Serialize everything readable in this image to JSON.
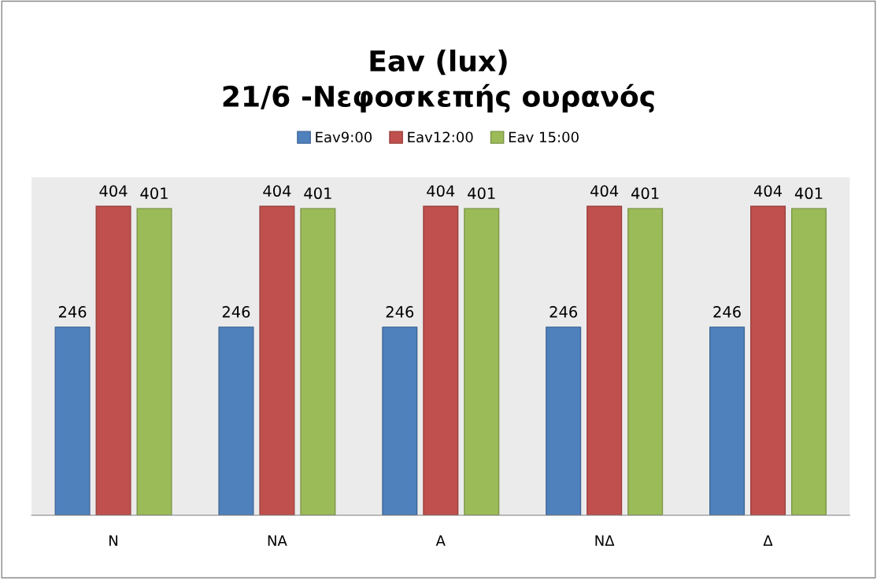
{
  "chart_data": {
    "type": "bar",
    "title": "Eav (lux)\n21/6 -Νεφοσκεπής ουρανός",
    "categories": [
      "N",
      "NA",
      "A",
      "NΔ",
      "Δ"
    ],
    "series": [
      {
        "name": "Eav9:00",
        "color": "#4f81bd",
        "values": [
          246,
          246,
          246,
          246,
          246
        ]
      },
      {
        "name": "Eav12:00",
        "color": "#c0504d",
        "values": [
          404,
          404,
          404,
          404,
          404
        ]
      },
      {
        "name": "Eav 15:00",
        "color": "#9bbb59",
        "values": [
          401,
          401,
          401,
          401,
          401
        ]
      }
    ],
    "data_labels": true,
    "legend": "top",
    "grid": false,
    "tick_labels": "x"
  }
}
